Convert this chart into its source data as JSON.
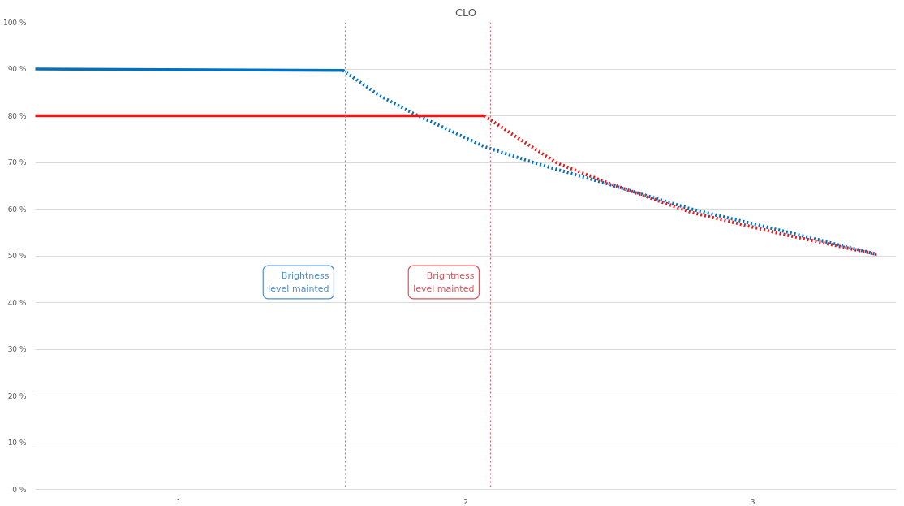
{
  "chart_data": {
    "type": "line",
    "title": "CLO",
    "xlim": [
      0.5,
      3.5
    ],
    "xticks": [
      1,
      2,
      3
    ],
    "ylim": [
      0,
      100
    ],
    "yticks": [
      {
        "value": 0,
        "label": "0 %"
      },
      {
        "value": 10,
        "label": "10 %"
      },
      {
        "value": 20,
        "label": "20 %"
      },
      {
        "value": 30,
        "label": "30 %"
      },
      {
        "value": 40,
        "label": "40 %"
      },
      {
        "value": 50,
        "label": "50 %"
      },
      {
        "value": 60,
        "label": "60 %"
      },
      {
        "value": 70,
        "label": "70 %"
      },
      {
        "value": 80,
        "label": "80 %"
      },
      {
        "value": 90,
        "label": "90 %"
      },
      {
        "value": 100,
        "label": "100 %"
      }
    ],
    "grid": "y",
    "series": [
      {
        "color": "#0070c0",
        "line_style": "solid",
        "x": [
          0.5,
          1.572
        ],
        "values": [
          90,
          89.7
        ]
      },
      {
        "color": "#0070c0",
        "line_style": "dotted",
        "x": [
          1.572,
          1.7,
          1.82,
          1.95,
          2.064,
          2.25,
          2.5,
          2.786,
          3.1,
          3.433
        ],
        "values": [
          89.7,
          84.3,
          80.4,
          76.7,
          73.4,
          69.7,
          65.3,
          60.0,
          55.4,
          50.3
        ]
      },
      {
        "color": "#e31a1c",
        "line_style": "solid",
        "x": [
          0.5,
          2.064
        ],
        "values": [
          80,
          80
        ]
      },
      {
        "color": "#e31a1c",
        "line_style": "dotted",
        "x": [
          2.064,
          2.2,
          2.32,
          2.5,
          2.786,
          3.1,
          3.433
        ],
        "values": [
          80,
          74.5,
          69.8,
          65.5,
          59.3,
          54.7,
          50.3
        ]
      }
    ],
    "ref_lines": [
      {
        "axis": "x",
        "value": 1.58,
        "color": "#4f8fd0",
        "line_style": "dotted"
      },
      {
        "axis": "x",
        "value": 2.086,
        "color": "#e0505a",
        "line_style": "dotted"
      }
    ],
    "annotations": [
      "Brightness\nlevel mainted",
      "Brightness\nlevel mainted"
    ]
  }
}
